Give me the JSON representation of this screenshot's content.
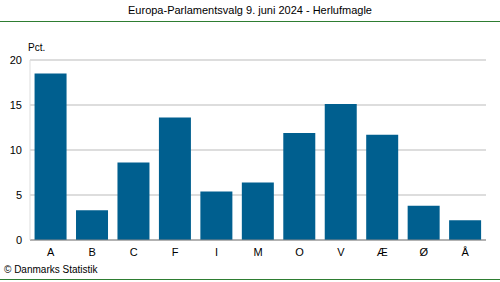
{
  "chart_data": {
    "type": "bar",
    "title": "Europa-Parlamentsvalg 9. juni 2024 - Herlufmagle",
    "y_label": "Pct.",
    "source": "© Danmarks Statistik",
    "categories": [
      "A",
      "B",
      "C",
      "F",
      "I",
      "M",
      "O",
      "V",
      "Æ",
      "Ø",
      "Å"
    ],
    "values": [
      18.5,
      3.3,
      8.6,
      13.6,
      5.4,
      6.4,
      11.9,
      15.1,
      11.7,
      3.8,
      2.2
    ],
    "color": "#005f8f",
    "ylim": [
      0,
      20
    ],
    "yticks": [
      0,
      5,
      10,
      15,
      20
    ],
    "grid": true
  }
}
